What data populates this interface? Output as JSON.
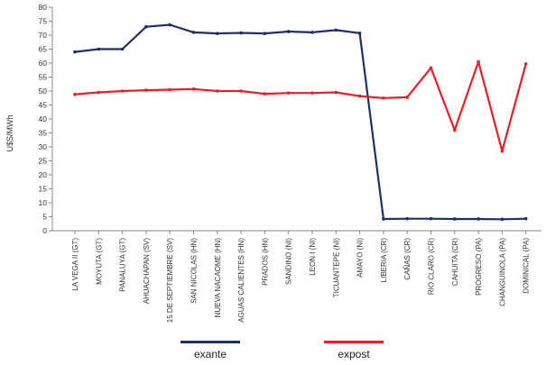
{
  "chart_data": {
    "type": "line",
    "title": "",
    "xlabel": "",
    "ylabel": "U$S/MWh",
    "ylim": [
      0,
      80
    ],
    "yticks": [
      0,
      5,
      10,
      15,
      20,
      25,
      30,
      35,
      40,
      45,
      50,
      55,
      60,
      65,
      70,
      75,
      80
    ],
    "grid": false,
    "legend_position": "bottom",
    "categories": [
      "LA VEGA II (GT)",
      "MOYUTA (GT)",
      "PANALUYA (GT)",
      "AHUACHAPAN (SV)",
      "15 DE SEPTIEMBRE (SV)",
      "SAN NICOLAS (HN)",
      "NUEVA NACAOME (HN)",
      "AGUAS CALIENTES (HN)",
      "PRADOS (HN)",
      "SANDINO (NI)",
      "LEON I (NI)",
      "TICUANTEPE (NI)",
      "AMAYO (NI)",
      "LIBERIA (CR)",
      "CAÑAS (CR)",
      "RIO CLARO (CR)",
      "CAHUITA (CR)",
      "PROGRESO (PA)",
      "CHANGUINOLA (PA)",
      "DOMINICAL (PA)"
    ],
    "series": [
      {
        "name": "exante",
        "color": "#1f2f6e",
        "values": [
          64.0,
          65.0,
          65.0,
          73.0,
          73.7,
          71.0,
          70.6,
          70.8,
          70.6,
          71.3,
          71.0,
          71.8,
          70.7,
          4.2,
          4.3,
          4.3,
          4.2,
          4.2,
          4.1,
          4.3
        ]
      },
      {
        "name": "expost",
        "color": "#ee1c25",
        "values": [
          48.8,
          49.5,
          50.0,
          50.3,
          50.5,
          50.7,
          50.0,
          50.0,
          49.0,
          49.3,
          49.3,
          49.5,
          48.2,
          47.5,
          47.8,
          58.3,
          36.0,
          60.5,
          28.5,
          59.7
        ]
      }
    ]
  }
}
